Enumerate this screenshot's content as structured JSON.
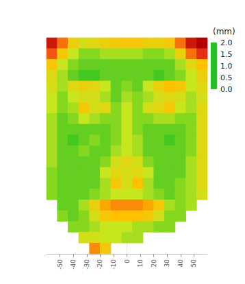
{
  "chart_data": {
    "type": "heatmap",
    "xlim": [
      -60,
      60
    ],
    "xticks": [
      -50,
      -40,
      -30,
      -20,
      -10,
      0,
      10,
      20,
      30,
      40,
      50
    ],
    "ylim": [
      0,
      160
    ],
    "tick_labels": "x",
    "cell_x": [
      -56,
      -48,
      -40,
      -32,
      -24,
      -16,
      -8,
      0,
      8,
      16,
      24,
      32,
      40,
      48,
      56
    ],
    "cell_y": [
      156,
      148,
      140,
      132,
      124,
      116,
      108,
      100,
      92,
      84,
      76,
      68,
      60,
      52,
      44,
      36,
      28,
      20,
      12,
      4
    ],
    "cells": [
      [
        1.8,
        1.3,
        0.8,
        0.6,
        0.7,
        0.8,
        0.9,
        0.9,
        0.9,
        0.8,
        0.8,
        0.9,
        1.3,
        1.8,
        2.0
      ],
      [
        1.4,
        0.9,
        0.5,
        0.3,
        0.3,
        0.4,
        0.4,
        0.4,
        0.4,
        0.3,
        0.3,
        0.4,
        0.8,
        1.3,
        1.6
      ],
      [
        0.9,
        0.5,
        0.3,
        0.2,
        0.2,
        0.2,
        0.2,
        0.2,
        0.2,
        0.2,
        0.2,
        0.2,
        0.4,
        0.7,
        1.0
      ],
      [
        0.7,
        0.4,
        0.2,
        0.1,
        0.1,
        0.2,
        0.2,
        0.2,
        0.2,
        0.2,
        0.1,
        0.2,
        0.3,
        0.5,
        0.8
      ],
      [
        0.6,
        0.4,
        0.7,
        0.8,
        0.7,
        0.5,
        0.2,
        0.3,
        0.2,
        0.5,
        0.8,
        1.0,
        0.9,
        0.5,
        0.7
      ],
      [
        0.5,
        0.3,
        0.5,
        0.6,
        0.6,
        0.4,
        0.2,
        0.4,
        0.3,
        0.4,
        0.6,
        0.7,
        0.6,
        0.4,
        0.6
      ],
      [
        0.5,
        0.3,
        0.4,
        0.9,
        0.6,
        0.7,
        0.3,
        0.5,
        0.3,
        0.6,
        0.7,
        0.9,
        0.5,
        0.4,
        0.7
      ],
      [
        0.4,
        0.2,
        0.3,
        0.5,
        0.4,
        0.3,
        0.3,
        0.5,
        0.3,
        0.3,
        0.4,
        0.4,
        0.3,
        0.3,
        0.7
      ],
      [
        0.4,
        0.2,
        0.2,
        0.2,
        0.2,
        0.2,
        0.3,
        0.5,
        0.3,
        0.2,
        0.2,
        0.2,
        0.2,
        0.3,
        0.7
      ],
      [
        0.4,
        0.2,
        0.1,
        0.2,
        0.3,
        0.2,
        0.3,
        0.5,
        0.4,
        0.2,
        0.2,
        0.1,
        0.2,
        0.3,
        0.7
      ],
      [
        0.4,
        0.2,
        0.2,
        0.3,
        0.2,
        0.2,
        0.4,
        0.5,
        0.4,
        0.2,
        0.2,
        0.2,
        0.2,
        0.3,
        0.7
      ],
      [
        0.4,
        0.2,
        0.2,
        0.2,
        0.2,
        0.3,
        0.6,
        0.7,
        0.6,
        0.3,
        0.2,
        0.2,
        0.2,
        0.4,
        0.7
      ],
      [
        0.3,
        0.2,
        0.2,
        0.2,
        0.2,
        0.5,
        0.7,
        0.6,
        0.7,
        0.5,
        0.2,
        0.2,
        0.2,
        0.4,
        0.7
      ],
      [
        0.3,
        0.2,
        0.2,
        0.2,
        0.2,
        0.4,
        0.9,
        0.6,
        1.0,
        0.4,
        0.2,
        0.2,
        0.3,
        0.4,
        0.7
      ],
      [
        0.3,
        0.2,
        0.2,
        0.2,
        0.3,
        0.4,
        0.5,
        0.5,
        0.5,
        0.4,
        0.3,
        0.2,
        0.3,
        0.4,
        0.6
      ],
      [
        null,
        0.2,
        0.2,
        0.4,
        0.8,
        1.1,
        1.2,
        1.2,
        1.2,
        1.1,
        0.9,
        0.4,
        0.3,
        0.4,
        null
      ],
      [
        null,
        0.3,
        0.2,
        0.3,
        0.6,
        0.9,
        1.0,
        1.0,
        1.0,
        0.9,
        0.6,
        0.3,
        0.3,
        null,
        null
      ],
      [
        null,
        null,
        0.3,
        0.3,
        0.4,
        0.5,
        0.5,
        0.5,
        0.4,
        0.4,
        0.3,
        0.3,
        null,
        null,
        null
      ],
      [
        null,
        null,
        null,
        0.6,
        0.6,
        0.5,
        0.5,
        0.4,
        0.4,
        null,
        null,
        null,
        null,
        null,
        null
      ],
      [
        null,
        null,
        null,
        null,
        1.2,
        0.9,
        null,
        null,
        null,
        null,
        null,
        null,
        null,
        null,
        null
      ]
    ],
    "colorbar": {
      "title": "(mm)",
      "range": [
        0,
        2
      ],
      "ticks": [
        {
          "value": 0,
          "label": "0.0"
        },
        {
          "value": 0.5,
          "label": "0.5"
        },
        {
          "value": 1,
          "label": "1.0"
        },
        {
          "value": 1.5,
          "label": "1.5"
        },
        {
          "value": 2,
          "label": "2.0"
        }
      ],
      "colors": [
        "#22c022",
        "#c8e61e",
        "#ffc000",
        "#f03c14",
        "#b40000"
      ]
    }
  }
}
